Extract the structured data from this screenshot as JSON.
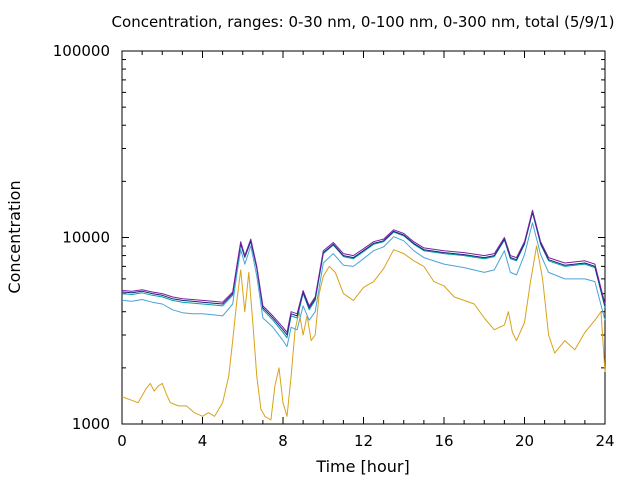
{
  "chart_data": {
    "type": "line",
    "title": "Concentration, ranges: 0-30 nm, 0-100 nm, 0-300 nm, total (5/9/1)",
    "xlabel": "Time [hour]",
    "ylabel": "Concentration",
    "xlim": [
      0,
      24
    ],
    "ylim": [
      1000,
      100000
    ],
    "yscale": "log",
    "xticks": [
      "0",
      "4",
      "8",
      "12",
      "16",
      "20",
      "24"
    ],
    "yticks": [
      "1000",
      "10000",
      "100000"
    ],
    "grid": false,
    "legend": "none",
    "series": [
      {
        "color": "#7b1fa2",
        "x": [
          0,
          0.5,
          1,
          1.5,
          2,
          2.5,
          3,
          3.5,
          4,
          4.5,
          5,
          5.5,
          5.7,
          5.9,
          6.1,
          6.4,
          6.7,
          7.0,
          7.5,
          8,
          8.2,
          8.4,
          8.7,
          9.0,
          9.3,
          9.6,
          10,
          10.5,
          11,
          11.5,
          12,
          12.5,
          13,
          13.5,
          14,
          14.5,
          15,
          16,
          17,
          18,
          18.5,
          19,
          19.3,
          19.6,
          20,
          20.4,
          20.8,
          21.2,
          22,
          23,
          23.5,
          24
        ],
        "y": [
          5200,
          5150,
          5250,
          5100,
          5000,
          4800,
          4700,
          4650,
          4600,
          4550,
          4500,
          5100,
          7000,
          9500,
          8000,
          9800,
          7000,
          4300,
          3800,
          3300,
          3100,
          4000,
          3900,
          5200,
          4300,
          4800,
          8500,
          9400,
          8200,
          8000,
          8700,
          9500,
          9800,
          11000,
          10500,
          9500,
          8800,
          8500,
          8300,
          8000,
          8200,
          10000,
          8000,
          7800,
          9500,
          14000,
          9500,
          7800,
          7300,
          7500,
          7200,
          4400
        ]
      },
      {
        "color": "#1a237e",
        "x": [
          0,
          0.5,
          1,
          1.5,
          2,
          2.5,
          3,
          3.5,
          4,
          4.5,
          5,
          5.5,
          5.7,
          5.9,
          6.1,
          6.4,
          6.7,
          7.0,
          7.5,
          8,
          8.2,
          8.4,
          8.7,
          9.0,
          9.3,
          9.6,
          10,
          10.5,
          11,
          11.5,
          12,
          12.5,
          13,
          13.5,
          14,
          14.5,
          15,
          16,
          17,
          18,
          18.5,
          19,
          19.3,
          19.6,
          20,
          20.4,
          20.8,
          21.2,
          22,
          23,
          23.5,
          24
        ],
        "y": [
          5100,
          5050,
          5150,
          5000,
          4900,
          4700,
          4600,
          4550,
          4500,
          4450,
          4400,
          5000,
          6900,
          9300,
          7900,
          9600,
          6900,
          4200,
          3700,
          3200,
          3000,
          3900,
          3800,
          5100,
          4200,
          4700,
          8300,
          9200,
          8000,
          7800,
          8500,
          9300,
          9600,
          10800,
          10300,
          9300,
          8600,
          8300,
          8100,
          7800,
          8000,
          9800,
          7800,
          7600,
          9300,
          13700,
          9300,
          7600,
          7100,
          7300,
          7000,
          4300
        ]
      },
      {
        "color": "#00a3a3",
        "x": [
          0,
          0.5,
          1,
          1.5,
          2,
          2.5,
          3,
          3.5,
          4,
          4.5,
          5,
          5.5,
          5.7,
          5.9,
          6.1,
          6.4,
          6.7,
          7.0,
          7.5,
          8,
          8.2,
          8.4,
          8.7,
          9.0,
          9.3,
          9.6,
          10,
          10.5,
          11,
          11.5,
          12,
          12.5,
          13,
          13.5,
          14,
          14.5,
          15,
          16,
          17,
          18,
          18.5,
          19,
          19.3,
          19.6,
          20,
          20.4,
          20.8,
          21.2,
          22,
          23,
          23.5,
          24
        ],
        "y": [
          5000,
          4950,
          5050,
          4900,
          4800,
          4600,
          4500,
          4450,
          4400,
          4350,
          4300,
          4900,
          6800,
          9200,
          7800,
          9500,
          6800,
          4100,
          3600,
          3100,
          2900,
          3800,
          3700,
          5000,
          4100,
          4600,
          8200,
          9100,
          7900,
          7700,
          8400,
          9200,
          9500,
          10700,
          10200,
          9200,
          8500,
          8200,
          8000,
          7700,
          7900,
          9700,
          7700,
          7500,
          9200,
          13600,
          9200,
          7500,
          7000,
          7200,
          6900,
          4200
        ]
      },
      {
        "color": "#4aa3d6",
        "x": [
          0,
          0.5,
          1,
          1.5,
          2,
          2.5,
          3,
          3.5,
          4,
          4.5,
          5,
          5.5,
          5.7,
          5.9,
          6.1,
          6.4,
          6.7,
          7.0,
          7.5,
          8,
          8.2,
          8.4,
          8.7,
          9.0,
          9.3,
          9.6,
          10,
          10.5,
          11,
          11.5,
          12,
          12.5,
          13,
          13.5,
          14,
          14.5,
          15,
          16,
          17,
          18,
          18.5,
          19,
          19.3,
          19.6,
          20,
          20.4,
          20.8,
          21.2,
          22,
          23,
          23.5,
          24
        ],
        "y": [
          4600,
          4550,
          4650,
          4500,
          4400,
          4100,
          3950,
          3900,
          3900,
          3850,
          3800,
          4400,
          6300,
          8600,
          7200,
          9000,
          6200,
          3700,
          3300,
          2800,
          2600,
          3300,
          3200,
          4300,
          3600,
          4000,
          7300,
          8200,
          7100,
          7000,
          7700,
          8500,
          8900,
          10100,
          9600,
          8500,
          7800,
          7200,
          6900,
          6500,
          6700,
          8500,
          6500,
          6300,
          8100,
          12000,
          8100,
          6500,
          6000,
          6000,
          5800,
          3600
        ]
      },
      {
        "color": "#d9a21b",
        "x": [
          0,
          0.4,
          0.8,
          1.2,
          1.4,
          1.6,
          1.8,
          2.0,
          2.2,
          2.4,
          2.8,
          3.2,
          3.6,
          4,
          4.3,
          4.6,
          5,
          5.3,
          5.5,
          5.7,
          5.9,
          6.1,
          6.3,
          6.5,
          6.7,
          6.9,
          7.1,
          7.4,
          7.6,
          7.8,
          8.0,
          8.2,
          8.4,
          8.6,
          8.8,
          9.0,
          9.2,
          9.4,
          9.6,
          9.8,
          10,
          10.3,
          10.6,
          11,
          11.5,
          12,
          12.5,
          13,
          13.5,
          14,
          14.5,
          15,
          15.5,
          16,
          16.5,
          17,
          17.5,
          18,
          18.5,
          19,
          19.2,
          19.4,
          19.6,
          20,
          20.3,
          20.6,
          20.9,
          21.2,
          21.5,
          22,
          22.5,
          23,
          23.5,
          23.8,
          24
        ],
        "y": [
          1400,
          1350,
          1300,
          1550,
          1650,
          1500,
          1600,
          1650,
          1450,
          1300,
          1250,
          1250,
          1150,
          1100,
          1150,
          1100,
          1300,
          1800,
          2800,
          4500,
          6700,
          4000,
          6500,
          3500,
          1800,
          1200,
          1100,
          1050,
          1600,
          2000,
          1300,
          1100,
          1800,
          3200,
          4000,
          3000,
          3800,
          2800,
          3000,
          5000,
          6200,
          7000,
          6500,
          5000,
          4600,
          5400,
          5800,
          6800,
          8600,
          8200,
          7500,
          7000,
          5800,
          5500,
          4800,
          4600,
          4400,
          3700,
          3200,
          3400,
          4000,
          3100,
          2800,
          3500,
          5800,
          9000,
          6000,
          3000,
          2400,
          2800,
          2500,
          3100,
          3600,
          4000,
          1900
        ]
      }
    ]
  }
}
